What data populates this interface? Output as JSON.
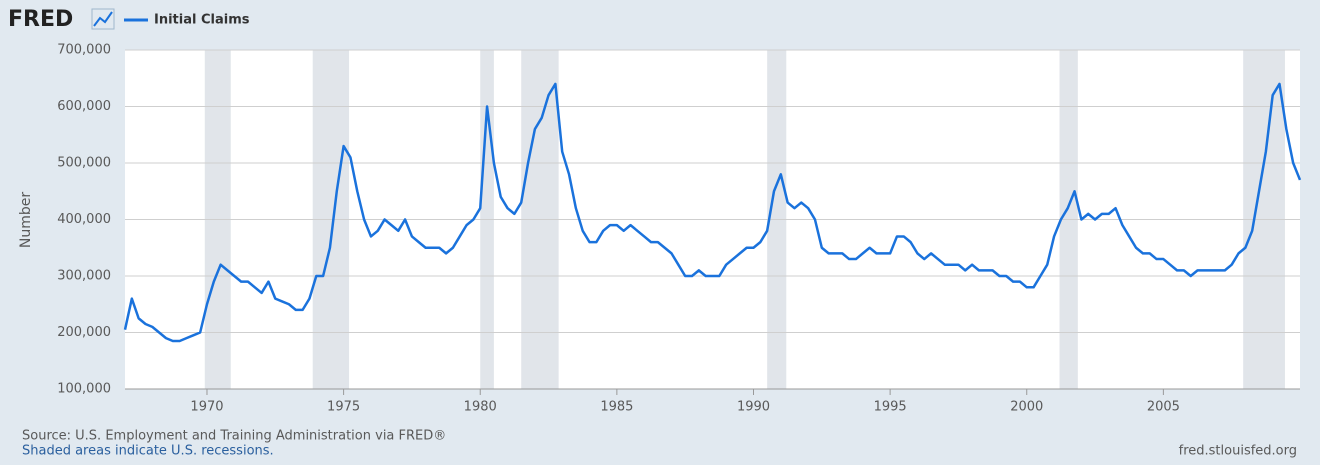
{
  "chart_data": {
    "type": "line",
    "logo": "FRED",
    "ylabel": "Number",
    "source": "Source: U.S. Employment and Training Administration via FRED®",
    "note": "Shaded areas indicate U.S. recessions.",
    "site": "fred.stlouisfed.org",
    "xlim": [
      1967.0,
      2010.0
    ],
    "xticks": [
      1970,
      1975,
      1980,
      1985,
      1990,
      1995,
      2000,
      2005
    ],
    "ylim": [
      100000,
      700000
    ],
    "yticks": [
      {
        "value": 100000,
        "label": "100,000"
      },
      {
        "value": 200000,
        "label": "200,000"
      },
      {
        "value": 300000,
        "label": "300,000"
      },
      {
        "value": 400000,
        "label": "400,000"
      },
      {
        "value": 500000,
        "label": "500,000"
      },
      {
        "value": 600000,
        "label": "600,000"
      },
      {
        "value": 700000,
        "label": "700,000"
      }
    ],
    "grid": true,
    "recessions": [
      [
        1969.92,
        1970.87
      ],
      [
        1973.87,
        1975.2
      ],
      [
        1980.0,
        1980.5
      ],
      [
        1981.5,
        1982.87
      ],
      [
        1990.5,
        1991.2
      ],
      [
        2001.2,
        2001.87
      ],
      [
        2007.92,
        2009.45
      ]
    ],
    "recession_color": "#e1e5ea",
    "x": [
      1967,
      1967.25,
      1967.5,
      1967.75,
      1968,
      1968.25,
      1968.5,
      1968.75,
      1969,
      1969.25,
      1969.5,
      1969.75,
      1970,
      1970.25,
      1970.5,
      1970.75,
      1971,
      1971.25,
      1971.5,
      1971.75,
      1972,
      1972.25,
      1972.5,
      1972.75,
      1973,
      1973.25,
      1973.5,
      1973.75,
      1974,
      1974.25,
      1974.5,
      1974.75,
      1975,
      1975.25,
      1975.5,
      1975.75,
      1976,
      1976.25,
      1976.5,
      1976.75,
      1977,
      1977.25,
      1977.5,
      1977.75,
      1978,
      1978.25,
      1978.5,
      1978.75,
      1979,
      1979.25,
      1979.5,
      1979.75,
      1980,
      1980.25,
      1980.5,
      1980.75,
      1981,
      1981.25,
      1981.5,
      1981.75,
      1982,
      1982.25,
      1982.5,
      1982.75,
      1983,
      1983.25,
      1983.5,
      1983.75,
      1984,
      1984.25,
      1984.5,
      1984.75,
      1985,
      1985.25,
      1985.5,
      1985.75,
      1986,
      1986.25,
      1986.5,
      1986.75,
      1987,
      1987.25,
      1987.5,
      1987.75,
      1988,
      1988.25,
      1988.5,
      1988.75,
      1989,
      1989.25,
      1989.5,
      1989.75,
      1990,
      1990.25,
      1990.5,
      1990.75,
      1991,
      1991.25,
      1991.5,
      1991.75,
      1992,
      1992.25,
      1992.5,
      1992.75,
      1993,
      1993.25,
      1993.5,
      1993.75,
      1994,
      1994.25,
      1994.5,
      1994.75,
      1995,
      1995.25,
      1995.5,
      1995.75,
      1996,
      1996.25,
      1996.5,
      1996.75,
      1997,
      1997.25,
      1997.5,
      1997.75,
      1998,
      1998.25,
      1998.5,
      1998.75,
      1999,
      1999.25,
      1999.5,
      1999.75,
      2000,
      2000.25,
      2000.5,
      2000.75,
      2001,
      2001.25,
      2001.5,
      2001.75,
      2002,
      2002.25,
      2002.5,
      2002.75,
      2003,
      2003.25,
      2003.5,
      2003.75,
      2004,
      2004.25,
      2004.5,
      2004.75,
      2005,
      2005.25,
      2005.5,
      2005.75,
      2006,
      2006.25,
      2006.5,
      2006.75,
      2007,
      2007.25,
      2007.5,
      2007.75,
      2008,
      2008.25,
      2008.5,
      2008.75,
      2009,
      2009.25,
      2009.5,
      2009.75,
      2010
    ],
    "series": [
      {
        "name": "Initial Claims",
        "color": "#1a72dc",
        "values": [
          205000,
          260000,
          225000,
          215000,
          210000,
          200000,
          190000,
          185000,
          185000,
          190000,
          195000,
          200000,
          250000,
          290000,
          320000,
          310000,
          300000,
          290000,
          290000,
          280000,
          270000,
          290000,
          260000,
          255000,
          250000,
          240000,
          240000,
          260000,
          300000,
          300000,
          350000,
          450000,
          530000,
          510000,
          450000,
          400000,
          370000,
          380000,
          400000,
          390000,
          380000,
          400000,
          370000,
          360000,
          350000,
          350000,
          350000,
          340000,
          350000,
          370000,
          390000,
          400000,
          420000,
          600000,
          500000,
          440000,
          420000,
          410000,
          430000,
          500000,
          560000,
          580000,
          620000,
          640000,
          520000,
          480000,
          420000,
          380000,
          360000,
          360000,
          380000,
          390000,
          390000,
          380000,
          390000,
          380000,
          370000,
          360000,
          360000,
          350000,
          340000,
          320000,
          300000,
          300000,
          310000,
          300000,
          300000,
          300000,
          320000,
          330000,
          340000,
          350000,
          350000,
          360000,
          380000,
          450000,
          480000,
          430000,
          420000,
          430000,
          420000,
          400000,
          350000,
          340000,
          340000,
          340000,
          330000,
          330000,
          340000,
          350000,
          340000,
          340000,
          340000,
          370000,
          370000,
          360000,
          340000,
          330000,
          340000,
          330000,
          320000,
          320000,
          320000,
          310000,
          320000,
          310000,
          310000,
          310000,
          300000,
          300000,
          290000,
          290000,
          280000,
          280000,
          300000,
          320000,
          370000,
          400000,
          420000,
          450000,
          400000,
          410000,
          400000,
          410000,
          410000,
          420000,
          390000,
          370000,
          350000,
          340000,
          340000,
          330000,
          330000,
          320000,
          310000,
          310000,
          300000,
          310000,
          310000,
          310000,
          310000,
          310000,
          320000,
          340000,
          350000,
          380000,
          450000,
          520000,
          620000,
          640000,
          560000,
          500000,
          470000
        ]
      }
    ]
  }
}
